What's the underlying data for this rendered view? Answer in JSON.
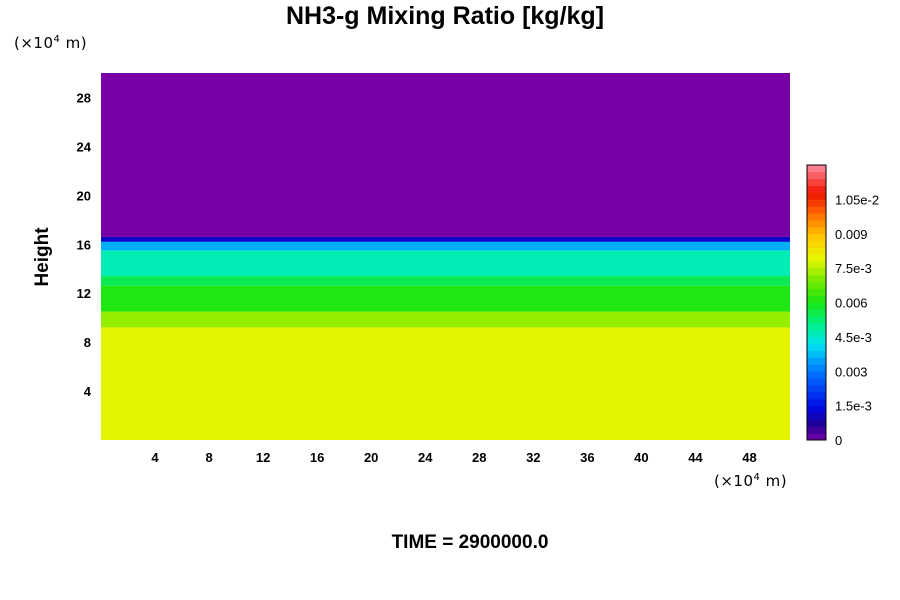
{
  "chart_data": {
    "type": "heatmap",
    "title": "NH3-g Mixing Ratio [kg/kg]",
    "ylabel": "Height",
    "x_unit_label": "(×10⁴ m)",
    "y_unit_label": "(×10⁴ m)",
    "footer": "TIME = 2900000.0",
    "xlim": [
      0,
      51
    ],
    "ylim": [
      0,
      30
    ],
    "x_ticks": [
      4,
      8,
      12,
      16,
      20,
      24,
      28,
      32,
      36,
      40,
      44,
      48
    ],
    "y_ticks": [
      4,
      8,
      12,
      16,
      20,
      24,
      28
    ],
    "layers": [
      {
        "y_from": 0,
        "y_to": 9.2,
        "value": 0.0079
      },
      {
        "y_from": 9.2,
        "y_to": 10.5,
        "value": 0.0072
      },
      {
        "y_from": 10.5,
        "y_to": 12.6,
        "value": 0.0061
      },
      {
        "y_from": 12.6,
        "y_to": 13.4,
        "value": 0.0055
      },
      {
        "y_from": 13.4,
        "y_to": 15.5,
        "value": 0.0047
      },
      {
        "y_from": 15.5,
        "y_to": 16.2,
        "value": 0.0036
      },
      {
        "y_from": 16.2,
        "y_to": 16.6,
        "value": 0.0012
      },
      {
        "y_from": 16.6,
        "y_to": 30,
        "value": 0.0
      }
    ],
    "colorbar": {
      "vmin": 0,
      "vmax": 0.012,
      "tick_values": [
        0,
        0.0015,
        0.003,
        0.0045,
        0.006,
        0.0075,
        0.009,
        0.0105
      ],
      "tick_labels": [
        "0",
        "1.5e-3",
        "0.003",
        "4.5e-3",
        "0.006",
        "7.5e-3",
        "0.009",
        "1.05e-2"
      ]
    }
  }
}
